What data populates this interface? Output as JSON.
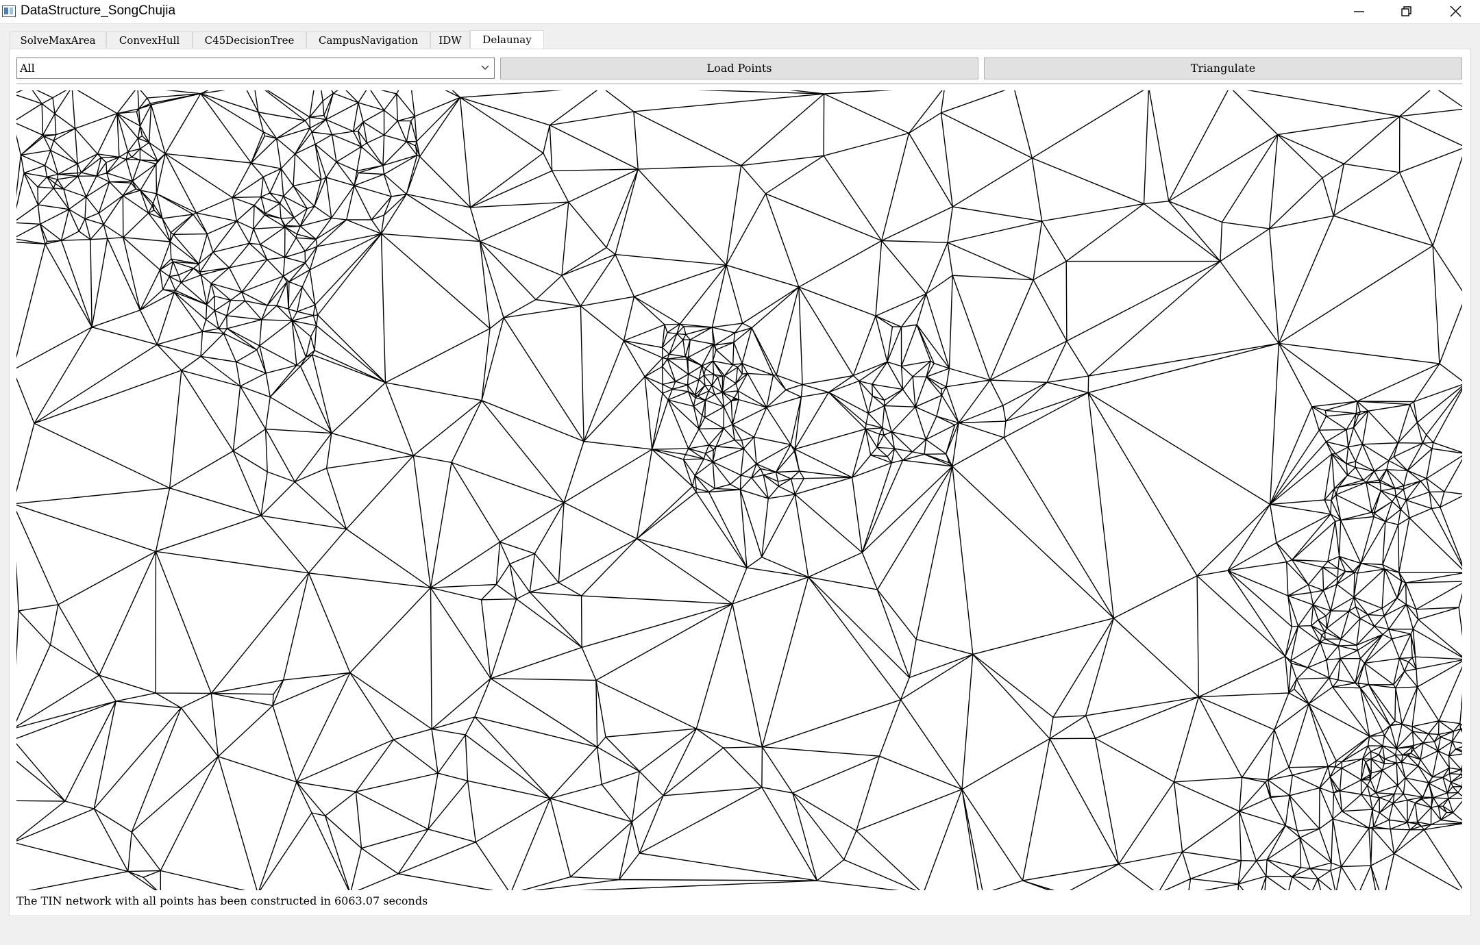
{
  "window": {
    "title": "DataStructure_SongChujia"
  },
  "tabs": [
    {
      "label": "SolveMaxArea",
      "active": false
    },
    {
      "label": "ConvexHull",
      "active": false
    },
    {
      "label": "C45DecisionTree",
      "active": false
    },
    {
      "label": "CampusNavigation",
      "active": false
    },
    {
      "label": "IDW",
      "active": false
    },
    {
      "label": "Delaunay",
      "active": true
    }
  ],
  "controls": {
    "point_set_selected": "All",
    "load_points_label": "Load Points",
    "triangulate_label": "Triangulate"
  },
  "status": {
    "message": "The TIN network with all points has been constructed in 6063.07 seconds"
  }
}
